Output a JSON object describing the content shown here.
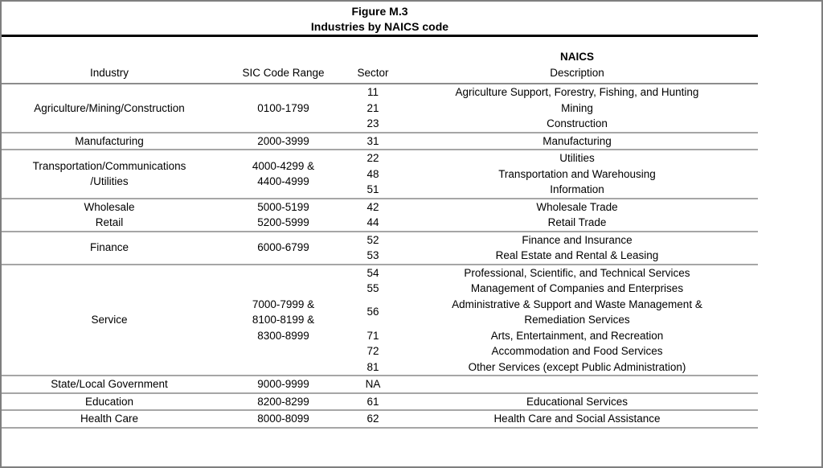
{
  "figure": {
    "title_line1": "Figure M.3",
    "title_line2": "Industries by NAICS code"
  },
  "table": {
    "headers": {
      "industry": "Industry",
      "sic": "SIC Code Range",
      "sector": "Sector",
      "naics": "NAICS",
      "description": "Description"
    },
    "groups": [
      {
        "entries": [
          {
            "industry": [
              "Agriculture/Mining/Construction"
            ],
            "sic": [
              "0100-1799"
            ],
            "rows": [
              {
                "sector": "11",
                "description": [
                  "Agriculture Support, Forestry, Fishing, and Hunting"
                ]
              },
              {
                "sector": "21",
                "description": [
                  "Mining"
                ]
              },
              {
                "sector": "23",
                "description": [
                  "Construction"
                ]
              }
            ]
          }
        ]
      },
      {
        "entries": [
          {
            "industry": [
              "Manufacturing"
            ],
            "sic": [
              "2000-3999"
            ],
            "rows": [
              {
                "sector": "31",
                "description": [
                  "Manufacturing"
                ]
              }
            ]
          }
        ]
      },
      {
        "entries": [
          {
            "industry": [
              "Transportation/Communications",
              "/Utilities"
            ],
            "sic": [
              "4000-4299 &",
              "4400-4999"
            ],
            "rows": [
              {
                "sector": "22",
                "description": [
                  "Utilities"
                ]
              },
              {
                "sector": "48",
                "description": [
                  "Transportation and Warehousing"
                ]
              },
              {
                "sector": "51",
                "description": [
                  "Information"
                ]
              }
            ]
          }
        ]
      },
      {
        "entries": [
          {
            "industry": [
              "Wholesale"
            ],
            "sic": [
              "5000-5199"
            ],
            "rows": [
              {
                "sector": "42",
                "description": [
                  "Wholesale Trade"
                ]
              }
            ]
          },
          {
            "industry": [
              "Retail"
            ],
            "sic": [
              "5200-5999"
            ],
            "rows": [
              {
                "sector": "44",
                "description": [
                  "Retail Trade"
                ]
              }
            ]
          }
        ]
      },
      {
        "entries": [
          {
            "industry": [
              "Finance"
            ],
            "sic": [
              "6000-6799"
            ],
            "rows": [
              {
                "sector": "52",
                "description": [
                  "Finance and Insurance"
                ]
              },
              {
                "sector": "53",
                "description": [
                  "Real Estate and Rental & Leasing"
                ]
              }
            ]
          }
        ]
      },
      {
        "entries": [
          {
            "industry": [
              "Service"
            ],
            "sic": [
              "7000-7999 &",
              "8100-8199 &",
              "8300-8999"
            ],
            "rows": [
              {
                "sector": "54",
                "description": [
                  "Professional, Scientific, and Technical Services"
                ]
              },
              {
                "sector": "55",
                "description": [
                  "Management of Companies and Enterprises"
                ]
              },
              {
                "sector": "56",
                "description": [
                  "Administrative & Support and Waste Management &",
                  "Remediation Services"
                ]
              },
              {
                "sector": "71",
                "description": [
                  "Arts, Entertainment, and Recreation"
                ]
              },
              {
                "sector": "72",
                "description": [
                  "Accommodation and Food Services"
                ]
              },
              {
                "sector": "81",
                "description": [
                  "Other Services (except Public Administration)"
                ]
              }
            ]
          }
        ]
      },
      {
        "entries": [
          {
            "industry": [
              "State/Local Government"
            ],
            "sic": [
              "9000-9999"
            ],
            "rows": [
              {
                "sector": "NA",
                "description": []
              }
            ]
          }
        ]
      },
      {
        "entries": [
          {
            "industry": [
              "Education"
            ],
            "sic": [
              "8200-8299"
            ],
            "rows": [
              {
                "sector": "61",
                "description": [
                  "Educational Services"
                ]
              }
            ]
          }
        ]
      },
      {
        "entries": [
          {
            "industry": [
              "Health Care"
            ],
            "sic": [
              "8000-8099"
            ],
            "rows": [
              {
                "sector": "62",
                "description": [
                  "Health Care and Social Assistance"
                ]
              }
            ]
          }
        ]
      }
    ]
  },
  "colors": {
    "text": "#000000",
    "thick_rule": "#000000",
    "header_rule": "#8c8c8c",
    "group_divider": "#a6a6a6",
    "outer_border": "#7f7f7f",
    "background": "#ffffff"
  }
}
